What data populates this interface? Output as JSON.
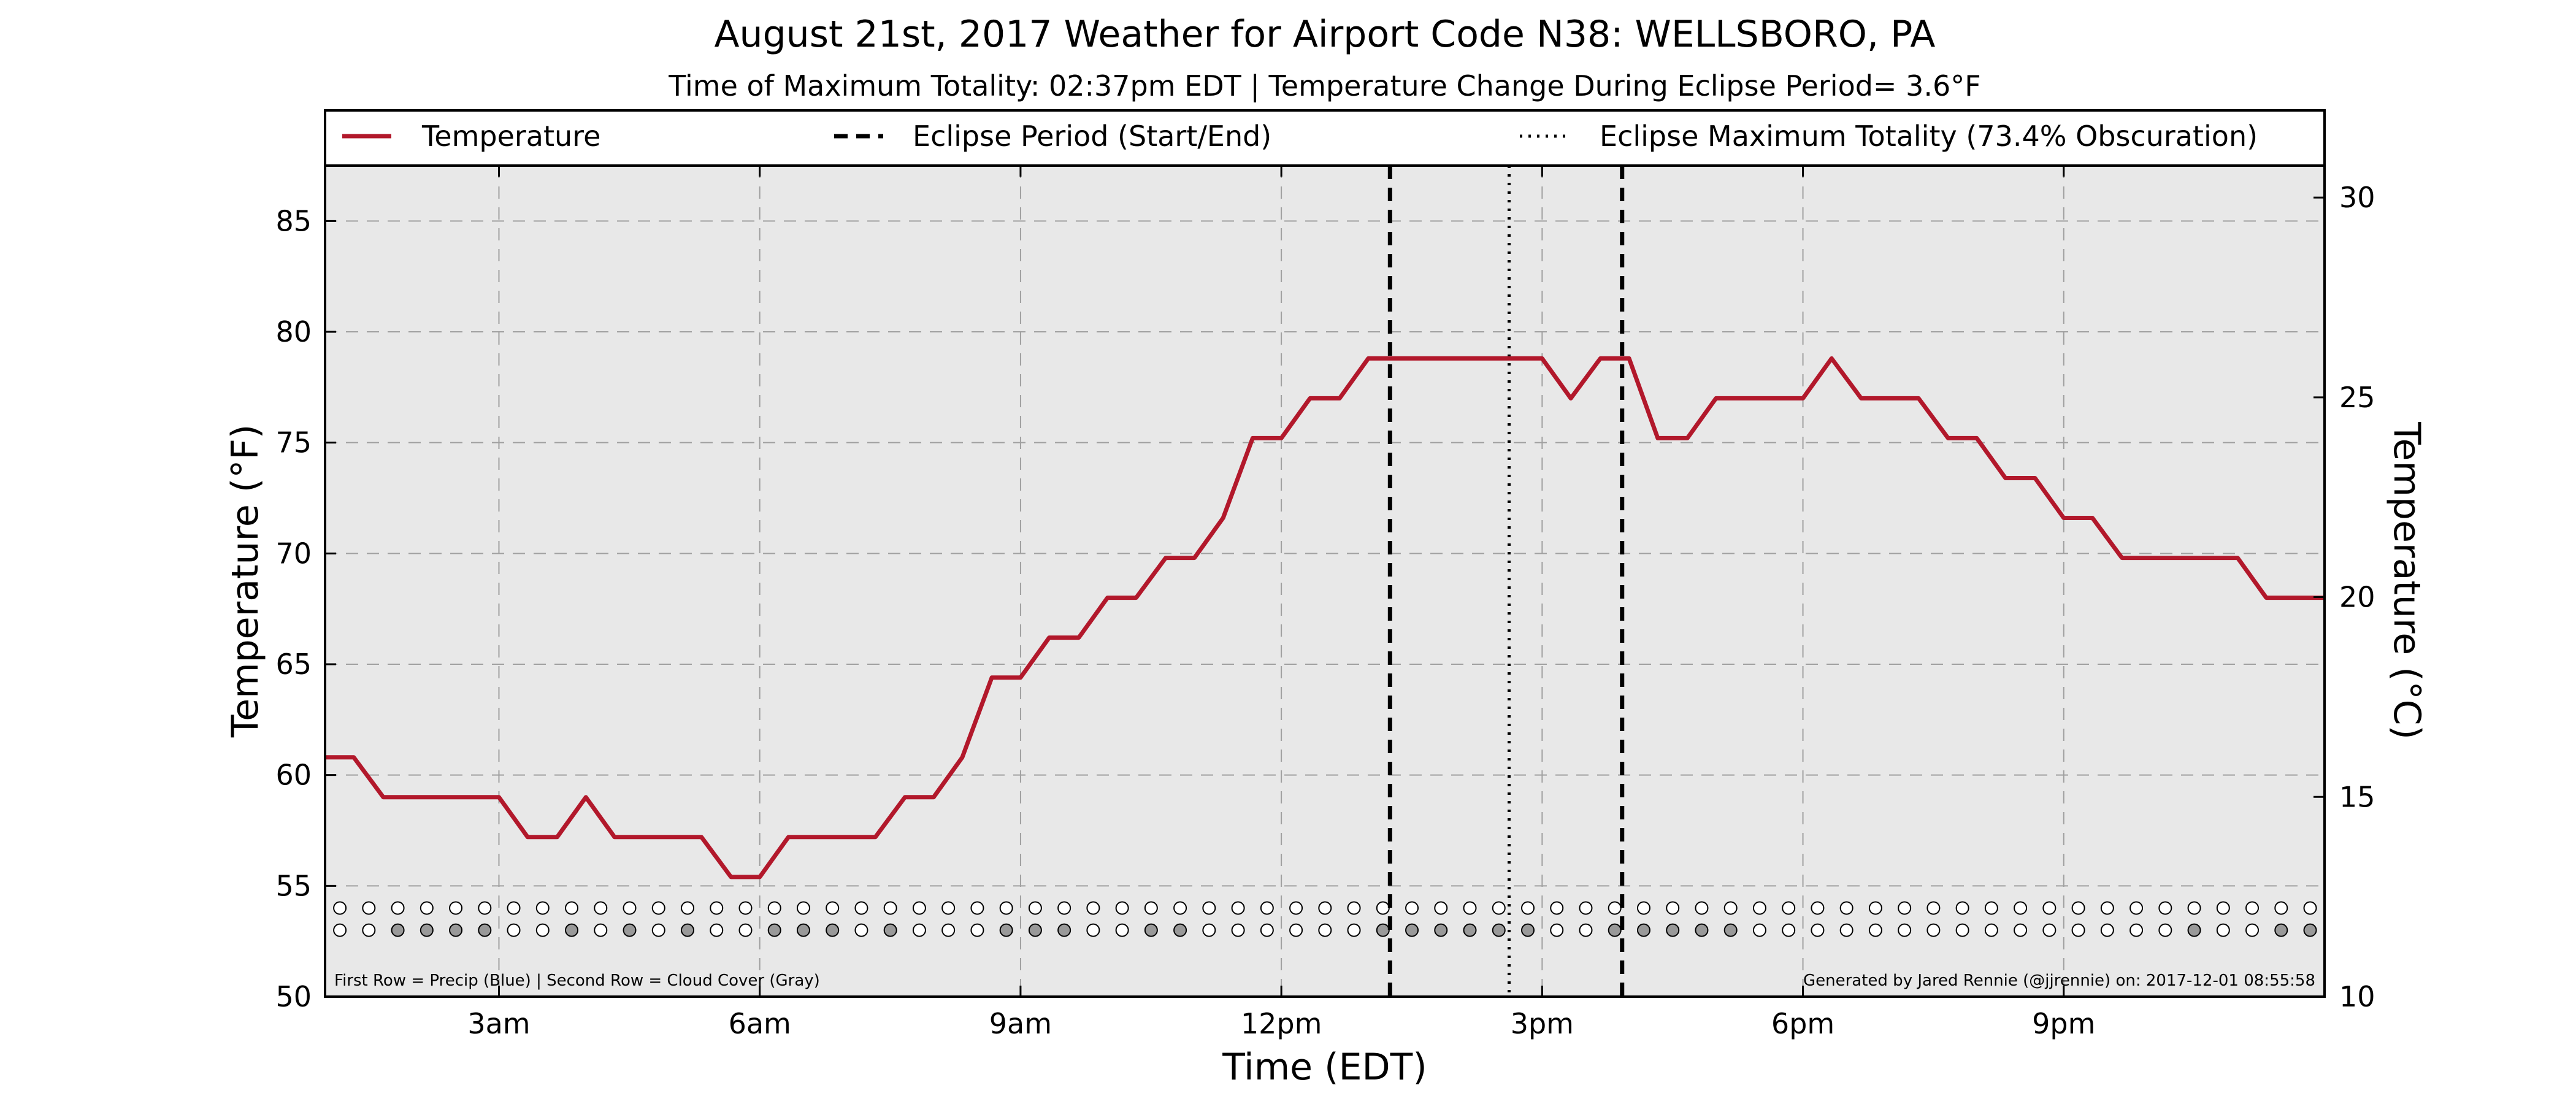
{
  "chart_data": {
    "type": "line",
    "title": "August 21st, 2017 Weather for Airport Code N38: WELLSBORO, PA",
    "subtitle": "Time of Maximum Totality: 02:37pm EDT | Temperature Change During Eclipse Period= 3.6$^{\\circ}$F",
    "subtitle_display": "Time of Maximum Totality: 02:37pm EDT | Temperature Change During Eclipse Period= 3.6°F",
    "xlabel": "Time (EDT)",
    "ylabel": "Temperature ($^\\circ$F)",
    "ylabel_display": "Temperature (°F)",
    "y2label": "Temperature ($^\\circ$C)",
    "y2label_display": "Temperature (°C)",
    "xlim": [
      1.0,
      24.0
    ],
    "ylim": [
      50,
      87.5
    ],
    "y2lim": [
      10,
      30.8
    ],
    "x_ticks": [
      3,
      6,
      9,
      12,
      15,
      18,
      21
    ],
    "x_tick_labels": [
      "3am",
      "6am",
      "9am",
      "12pm",
      "3pm",
      "6pm",
      "9pm"
    ],
    "y_ticks": [
      50,
      55,
      60,
      65,
      70,
      75,
      80,
      85
    ],
    "y2_ticks": [
      10,
      15,
      20,
      25,
      30
    ],
    "grid": true,
    "legend_position": "top",
    "series": [
      {
        "name": "Temperature",
        "color": "#b2182b",
        "style": "solid",
        "x": [
          1.0,
          1.33,
          1.67,
          2.0,
          2.33,
          2.67,
          3.0,
          3.33,
          3.67,
          4.0,
          4.33,
          4.67,
          5.0,
          5.33,
          5.67,
          6.0,
          6.33,
          6.67,
          7.0,
          7.33,
          7.67,
          8.0,
          8.33,
          8.67,
          9.0,
          9.33,
          9.67,
          10.0,
          10.33,
          10.67,
          11.0,
          11.33,
          11.67,
          12.0,
          12.33,
          12.67,
          13.0,
          13.33,
          13.67,
          14.0,
          14.33,
          14.67,
          15.0,
          15.33,
          15.67,
          16.0,
          16.33,
          16.67,
          17.0,
          17.33,
          17.67,
          18.0,
          18.33,
          18.67,
          19.0,
          19.33,
          19.67,
          20.0,
          20.33,
          20.67,
          21.0,
          21.33,
          21.67,
          22.0,
          22.33,
          22.67,
          23.0,
          23.33,
          23.67,
          24.0
        ],
        "y": [
          60.8,
          60.8,
          59.0,
          59.0,
          59.0,
          59.0,
          59.0,
          57.2,
          57.2,
          59.0,
          57.2,
          57.2,
          57.2,
          57.2,
          55.4,
          55.4,
          57.2,
          57.2,
          57.2,
          57.2,
          59.0,
          59.0,
          60.8,
          64.4,
          64.4,
          66.2,
          66.2,
          68.0,
          68.0,
          69.8,
          69.8,
          71.6,
          75.2,
          75.2,
          77.0,
          77.0,
          78.8,
          78.8,
          78.8,
          78.8,
          78.8,
          78.8,
          78.8,
          77.0,
          78.8,
          78.8,
          75.2,
          75.2,
          77.0,
          77.0,
          77.0,
          77.0,
          78.8,
          77.0,
          77.0,
          77.0,
          75.2,
          75.2,
          73.4,
          73.4,
          71.6,
          71.6,
          69.8,
          69.8,
          69.8,
          69.8,
          69.8,
          68.0,
          68.0,
          68.0
        ]
      }
    ],
    "eclipse_period": {
      "name": "Eclipse Period (Start/End)",
      "style": "dashed",
      "color": "#000000",
      "start_x": 13.25,
      "end_x": 15.92
    },
    "eclipse_max": {
      "name": "Eclipse Maximum Totality (73.4% Obscuration)",
      "style": "dotted",
      "color": "#000000",
      "x": 14.62
    },
    "markers": {
      "start_x": 1.17,
      "step": 0.3333,
      "count": 69,
      "precip_y": 54.0,
      "cloud_y": 53.0,
      "precip_color": "#ffffff",
      "cloud_clear_color": "#ffffff",
      "cloud_cover_color": "#999999",
      "cloud_cover_indices": [
        2,
        3,
        4,
        5,
        8,
        10,
        12,
        15,
        16,
        17,
        19,
        23,
        24,
        25,
        28,
        29,
        36,
        37,
        38,
        39,
        40,
        41,
        44,
        45,
        46,
        47,
        48,
        64,
        67,
        68
      ]
    },
    "footnote_left": "First Row = Precip (Blue) | Second Row = Cloud Cover (Gray)",
    "footnote_right": "Generated by Jared Rennie (@jjrennie) on: 2017-12-01 08:55:58",
    "plot_background": "#e8e8e8"
  }
}
